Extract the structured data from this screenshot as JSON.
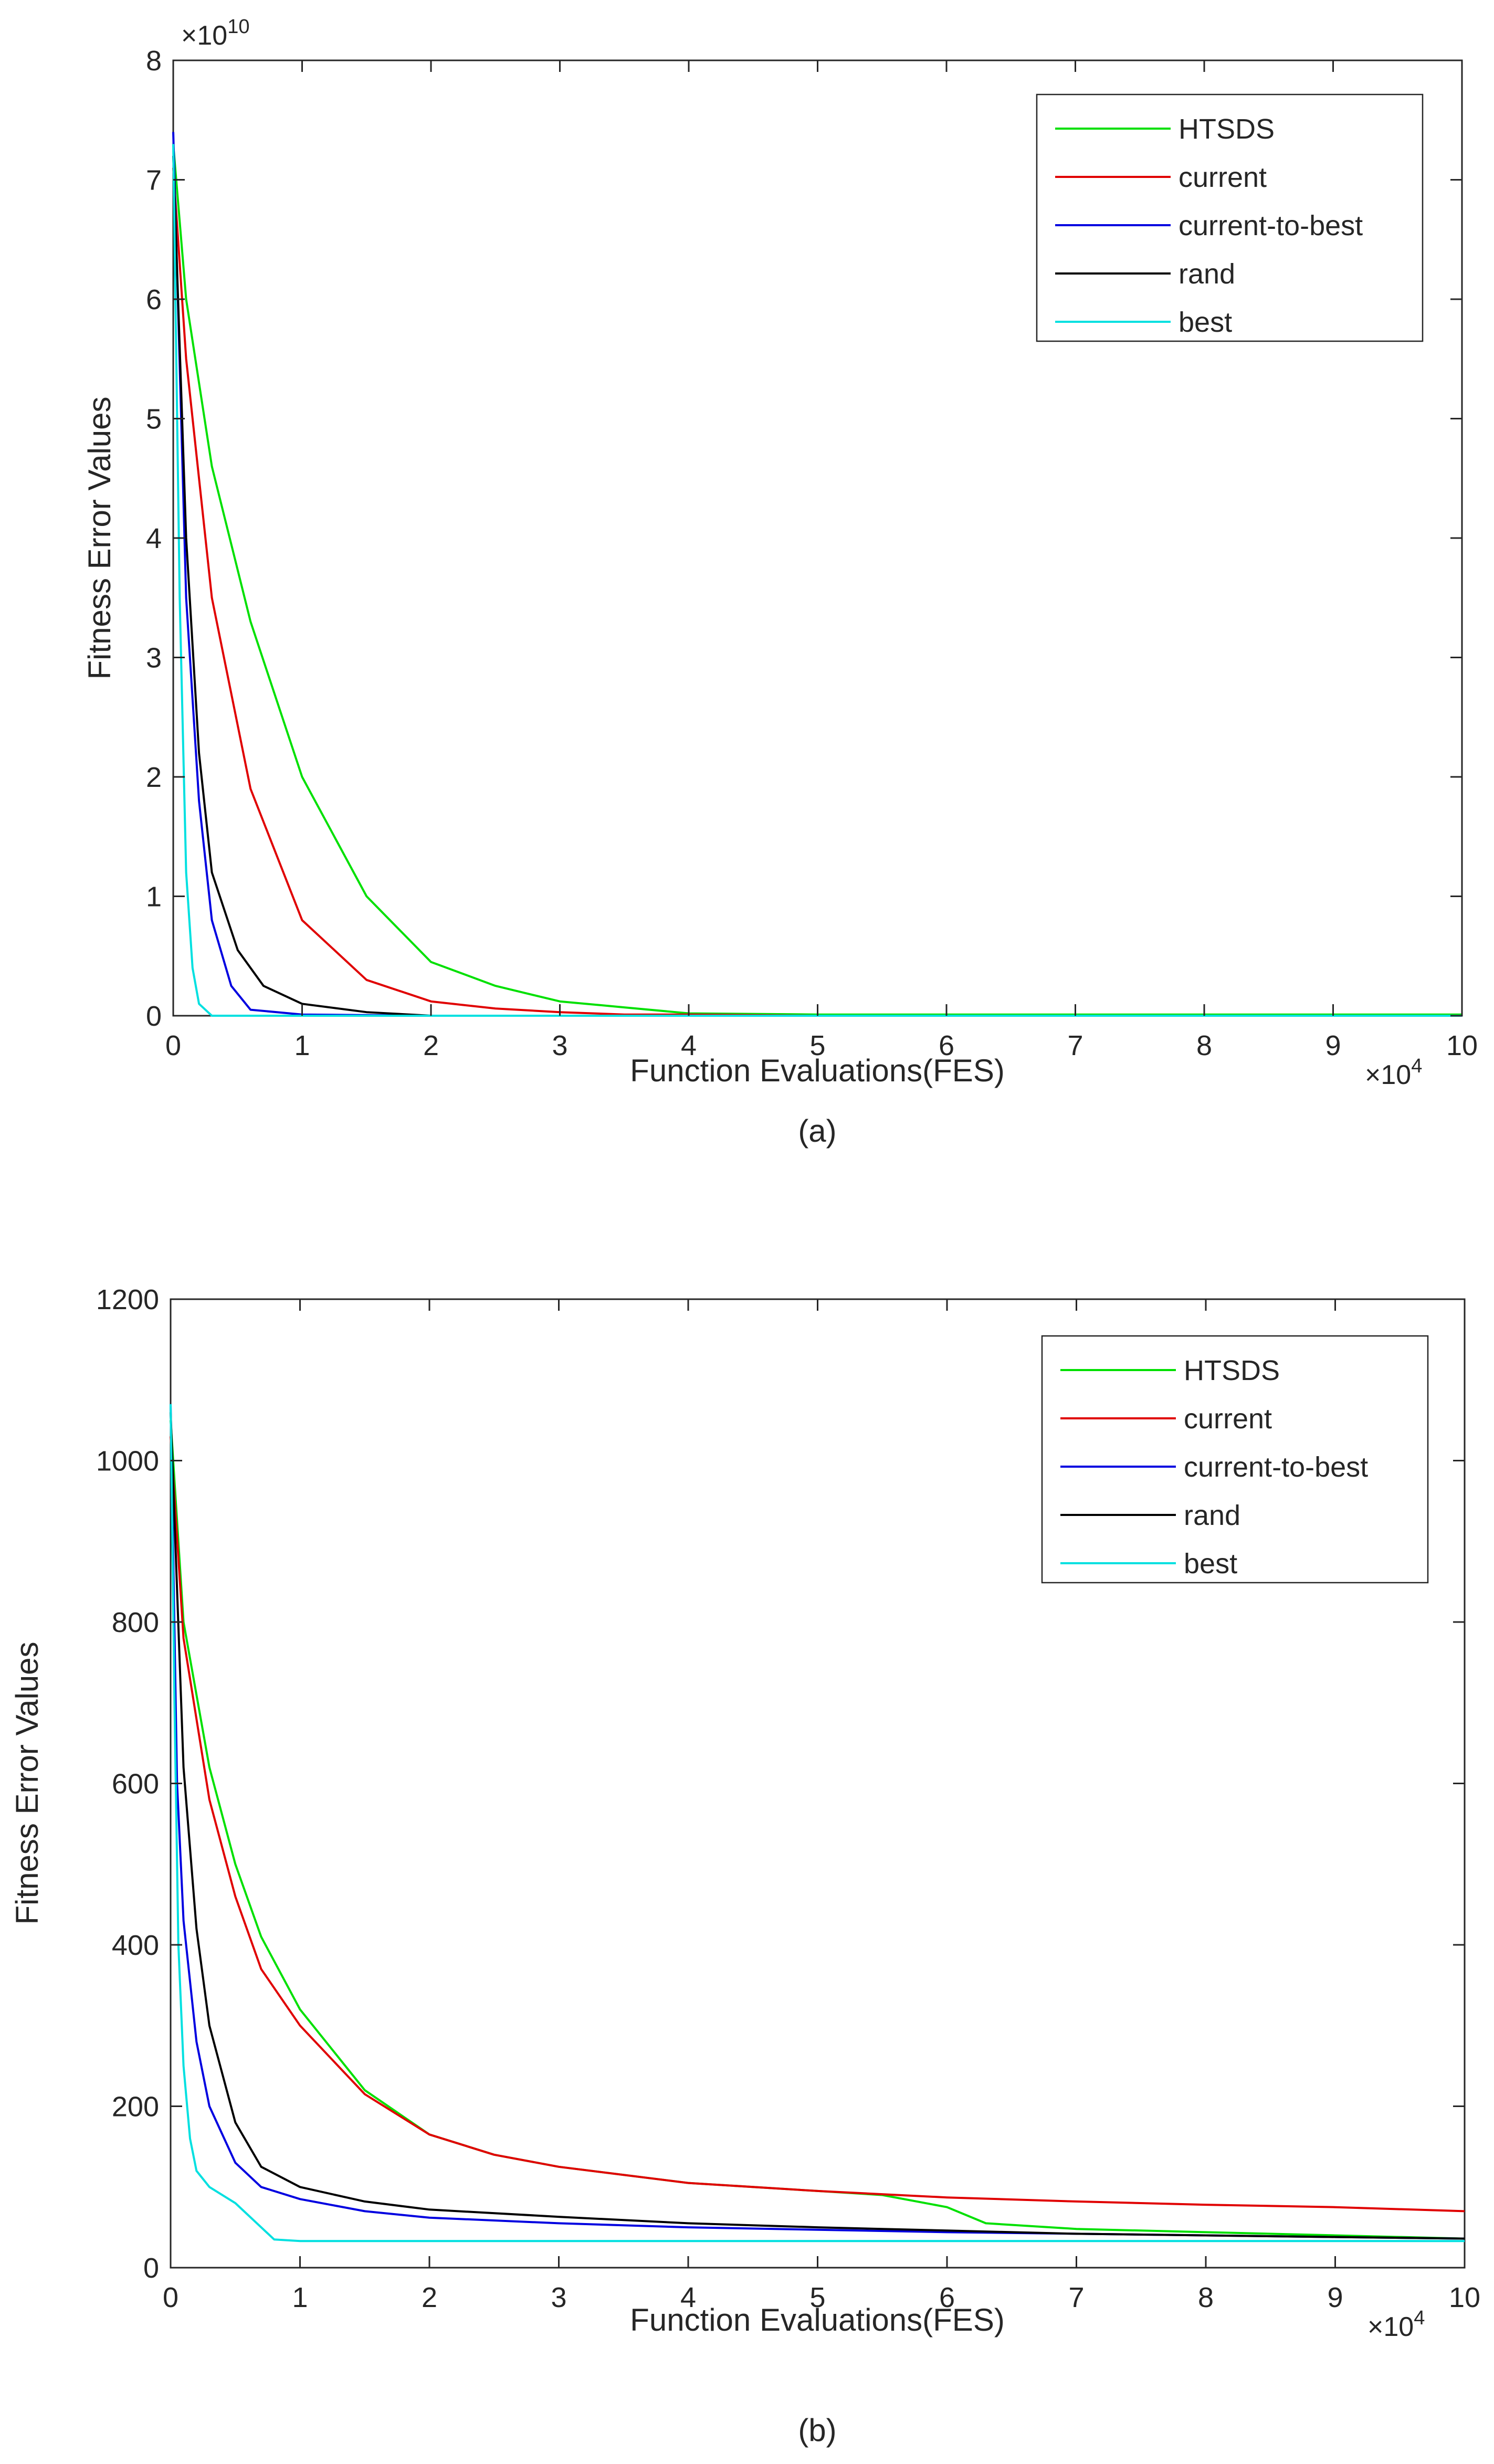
{
  "chart_data": [
    {
      "type": "line",
      "id": "a",
      "caption": "(a)",
      "xlabel": "Function Evaluations(FES)",
      "ylabel": "Fitness Error Values",
      "x_multiplier": "×10",
      "x_multiplier_exp": "4",
      "y_multiplier": "×10",
      "y_multiplier_exp": "10",
      "xlim": [
        0,
        10
      ],
      "ylim": [
        0,
        8
      ],
      "xticks": [
        0,
        1,
        2,
        3,
        4,
        5,
        6,
        7,
        8,
        9,
        10
      ],
      "yticks": [
        0,
        1,
        2,
        3,
        4,
        5,
        6,
        7,
        8
      ],
      "grid": false,
      "legend_position": "top-right",
      "series": [
        {
          "name": "HTSDS",
          "color": "#00e000",
          "x": [
            0,
            0.1,
            0.3,
            0.6,
            1,
            1.5,
            2,
            2.5,
            3,
            3.5,
            4,
            5,
            10
          ],
          "y": [
            7.3,
            6,
            4.6,
            3.3,
            2.0,
            1.0,
            0.45,
            0.25,
            0.12,
            0.07,
            0.02,
            0.01,
            0.01
          ]
        },
        {
          "name": "current",
          "color": "#e00000",
          "x": [
            0,
            0.1,
            0.3,
            0.6,
            1,
            1.5,
            2,
            2.5,
            3,
            3.5,
            4,
            5,
            10
          ],
          "y": [
            7.1,
            5.5,
            3.5,
            1.9,
            0.8,
            0.3,
            0.12,
            0.06,
            0.03,
            0.01,
            0.01,
            0.0,
            0.0
          ]
        },
        {
          "name": "current-to-best",
          "color": "#0000e0",
          "x": [
            0,
            0.1,
            0.2,
            0.3,
            0.45,
            0.6,
            1,
            2,
            10
          ],
          "y": [
            7.4,
            3.5,
            1.8,
            0.8,
            0.25,
            0.05,
            0.01,
            0.0,
            0.0
          ]
        },
        {
          "name": "rand",
          "color": "#000000",
          "x": [
            0,
            0.1,
            0.2,
            0.3,
            0.5,
            0.7,
            1,
            1.5,
            2,
            10
          ],
          "y": [
            7.2,
            4.0,
            2.2,
            1.2,
            0.55,
            0.25,
            0.1,
            0.03,
            0.0,
            0.0
          ]
        },
        {
          "name": "best",
          "color": "#00e0e0",
          "x": [
            0,
            0.05,
            0.1,
            0.15,
            0.2,
            0.3,
            10
          ],
          "y": [
            7.3,
            3.5,
            1.2,
            0.4,
            0.1,
            0.0,
            0.0
          ]
        }
      ]
    },
    {
      "type": "line",
      "id": "b",
      "caption": "(b)",
      "xlabel": "Function Evaluations(FES)",
      "ylabel": "Fitness Error Values",
      "x_multiplier": "×10",
      "x_multiplier_exp": "4",
      "xlim": [
        0,
        10
      ],
      "ylim": [
        0,
        1200
      ],
      "xticks": [
        0,
        1,
        2,
        3,
        4,
        5,
        6,
        7,
        8,
        9,
        10
      ],
      "yticks": [
        0,
        200,
        400,
        600,
        800,
        1000,
        1200
      ],
      "grid": false,
      "legend_position": "top-right",
      "series": [
        {
          "name": "HTSDS",
          "color": "#00e000",
          "x": [
            0,
            0.1,
            0.3,
            0.5,
            0.7,
            1,
            1.5,
            2,
            2.5,
            3,
            4,
            5,
            5.5,
            6,
            6.3,
            7,
            8,
            9,
            10
          ],
          "y": [
            1050,
            800,
            620,
            500,
            410,
            320,
            220,
            165,
            140,
            125,
            105,
            95,
            90,
            75,
            55,
            48,
            44,
            40,
            36
          ]
        },
        {
          "name": "current",
          "color": "#e00000",
          "x": [
            0,
            0.1,
            0.3,
            0.5,
            0.7,
            1,
            1.5,
            2,
            2.5,
            3,
            4,
            5,
            6,
            7,
            8,
            9,
            10
          ],
          "y": [
            1030,
            780,
            580,
            460,
            370,
            300,
            215,
            165,
            140,
            125,
            105,
            95,
            87,
            82,
            78,
            75,
            70
          ]
        },
        {
          "name": "current-to-best",
          "color": "#0000e0",
          "x": [
            0,
            0.05,
            0.1,
            0.2,
            0.3,
            0.5,
            0.7,
            1,
            1.5,
            2,
            3,
            4,
            5,
            6,
            7,
            8,
            9,
            10
          ],
          "y": [
            1070,
            600,
            430,
            280,
            200,
            130,
            100,
            85,
            70,
            62,
            55,
            50,
            47,
            44,
            42,
            40,
            38,
            36
          ]
        },
        {
          "name": "rand",
          "color": "#000000",
          "x": [
            0,
            0.1,
            0.2,
            0.3,
            0.5,
            0.7,
            1,
            1.5,
            2,
            3,
            4,
            5,
            6,
            7,
            8,
            9,
            10
          ],
          "y": [
            1060,
            620,
            420,
            300,
            180,
            125,
            100,
            82,
            72,
            63,
            55,
            50,
            46,
            42,
            40,
            38,
            36
          ]
        },
        {
          "name": "best",
          "color": "#00e0e0",
          "x": [
            0,
            0.03,
            0.06,
            0.1,
            0.15,
            0.2,
            0.3,
            0.5,
            0.7,
            0.8,
            1,
            10
          ],
          "y": [
            1070,
            700,
            400,
            250,
            160,
            120,
            100,
            80,
            50,
            35,
            33,
            33
          ]
        }
      ]
    }
  ]
}
